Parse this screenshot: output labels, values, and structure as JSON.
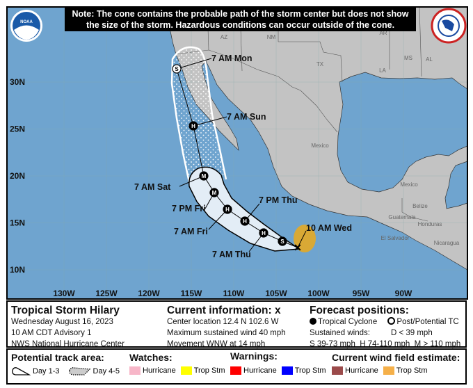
{
  "note": {
    "line1": "Note: The cone contains the probable path of the storm center but does not show",
    "line2": "the size of the storm. Hazardous conditions can occur outside of the cone."
  },
  "logos": {
    "left": "NOAA",
    "right": "National Weather Service"
  },
  "map": {
    "longitude_ticks": [
      "130W",
      "125W",
      "120W",
      "115W",
      "110W",
      "105W",
      "100W",
      "95W",
      "90W"
    ],
    "latitude_ticks": [
      "30N",
      "25N",
      "20N",
      "15N",
      "10N"
    ],
    "place_labels": [
      "AZ",
      "NM",
      "TX",
      "AR",
      "MS",
      "AL",
      "LA",
      "Mexico",
      "Mexico",
      "Belize",
      "Guatemala",
      "Honduras",
      "El Salvador",
      "Nicaragua"
    ],
    "forecast_points": [
      {
        "label": "10 AM Wed",
        "type": "X",
        "lat": 12.4,
        "lon": -102.6
      },
      {
        "label": "",
        "type": "S",
        "lat": 13.1,
        "lon": -104.3
      },
      {
        "label": "7 AM Thu",
        "type": "H",
        "lat": 13.9,
        "lon": -106.5
      },
      {
        "label": "7 PM Thu",
        "type": "H",
        "lat": 15.2,
        "lon": -108.7
      },
      {
        "label": "7 AM Fri",
        "type": "H",
        "lat": 16.6,
        "lon": -110.7
      },
      {
        "label": "7 PM Fri",
        "type": "M",
        "lat": 18.4,
        "lon": -112.3
      },
      {
        "label": "7 AM Sat",
        "type": "M",
        "lat": 20.3,
        "lon": -113.5
      },
      {
        "label": "7 AM Sun",
        "type": "H",
        "lat": 25.6,
        "lon": -114.7
      },
      {
        "label": "7 AM Mon",
        "type": "S",
        "lat": 31.7,
        "lon": -116.6
      }
    ],
    "colors": {
      "ocean": "#6fa4cf",
      "land": "#c3c3c3",
      "cone_day13": "#e3edf6",
      "wind_trop_stm": "#d9a935"
    }
  },
  "info": {
    "storm_title": "Tropical Storm Hilary",
    "date": "Wednesday August 16, 2023",
    "advisory": "10 AM CDT Advisory 1",
    "agency": "NWS National Hurricane Center",
    "current_heading": "Current information:",
    "current_marker": "x",
    "center_location": "Center location 12.4 N 102.6 W",
    "max_wind": "Maximum sustained wind 40 mph",
    "movement": "Movement WNW at 14 mph",
    "forecast_heading": "Forecast positions:",
    "tropical_cyclone": "Tropical Cyclone",
    "post_potential": "Post/Potential TC",
    "sustained_winds": "Sustained winds:",
    "d_scale": "D < 39 mph",
    "s_scale": "S 39-73 mph",
    "h_scale": "H 74-110 mph",
    "m_scale": "M > 110 mph"
  },
  "legend": {
    "track_heading": "Potential track area:",
    "day13": "Day 1-3",
    "day45": "Day 4-5",
    "watches_heading": "Watches:",
    "watch_hurricane": "Hurricane",
    "watch_trop": "Trop Stm",
    "warnings_heading": "Warnings:",
    "warn_hurricane": "Hurricane",
    "warn_trop": "Trop Stm",
    "wind_heading": "Current wind field estimate:",
    "wind_hurricane": "Hurricane",
    "wind_trop": "Trop Stm",
    "colors": {
      "watch_hurricane": "#f7b6c8",
      "watch_trop": "#ffff00",
      "warn_hurricane": "#ff0000",
      "warn_trop": "#0000ff",
      "wind_hurricane": "#9b4a4a",
      "wind_trop": "#f5b04a"
    }
  }
}
